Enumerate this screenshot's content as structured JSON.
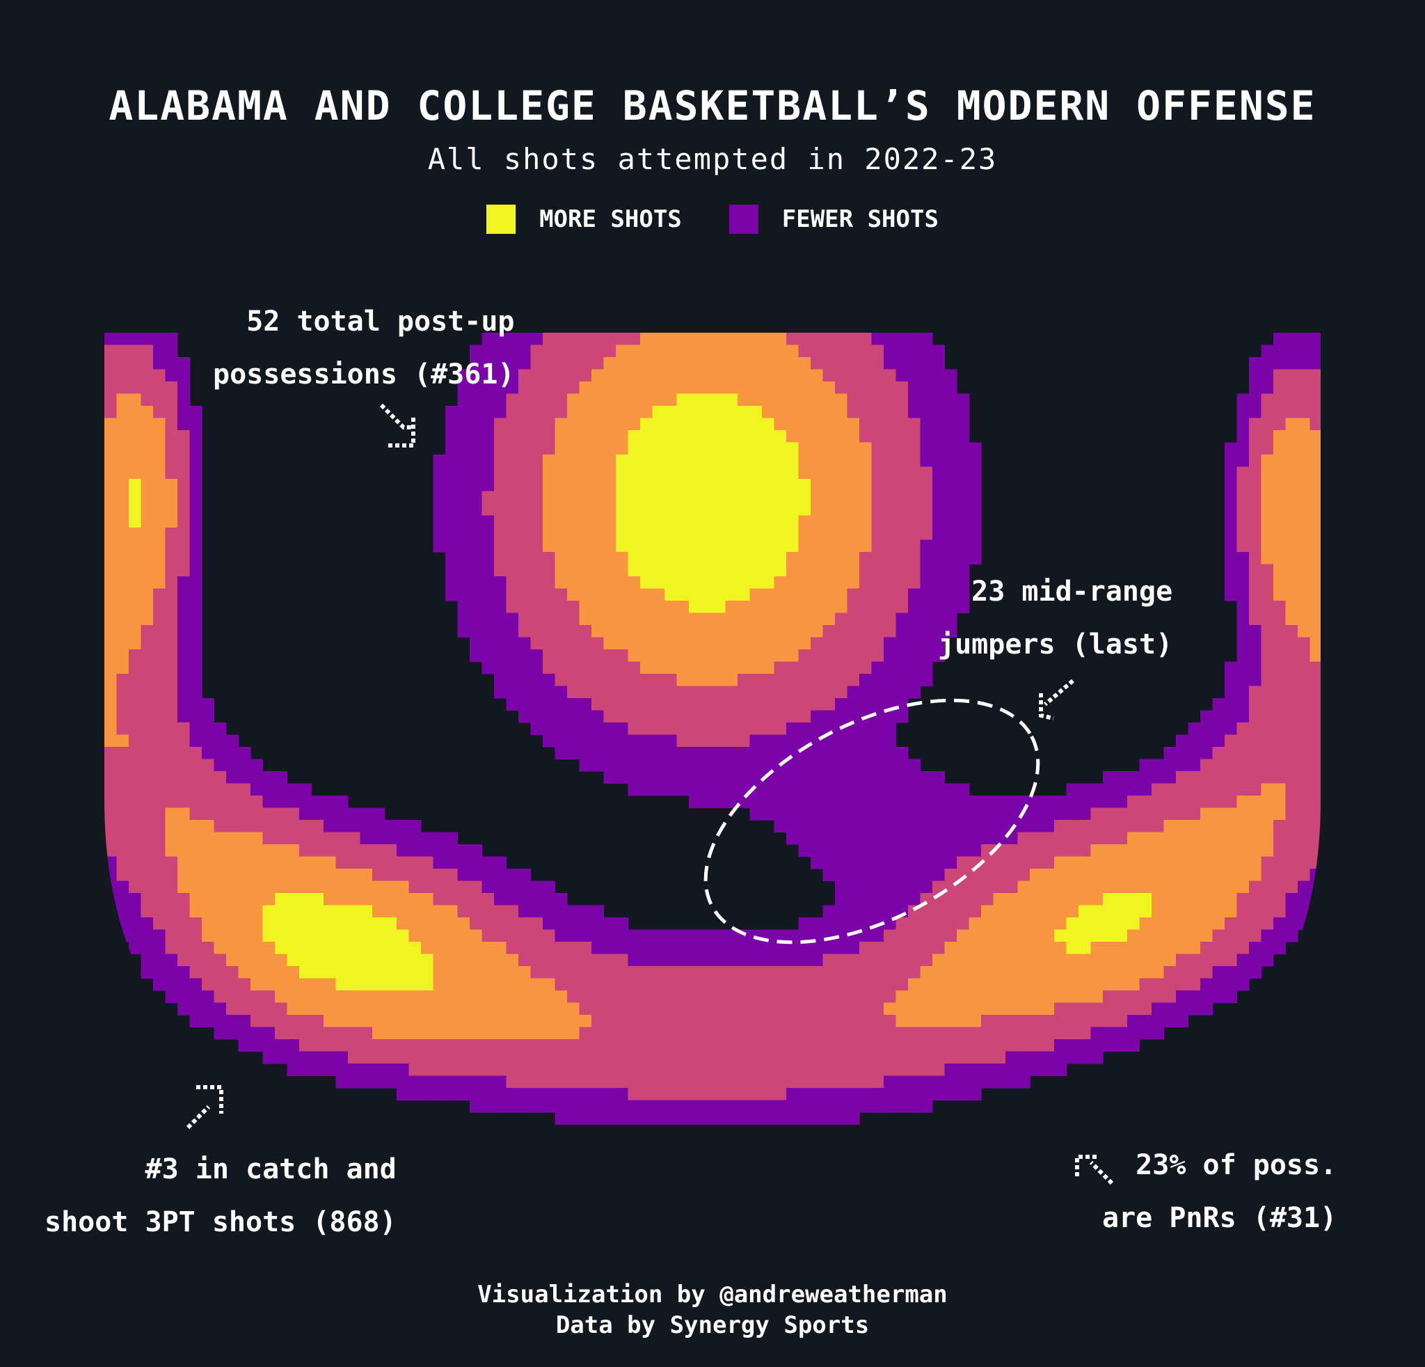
{
  "chart_data": {
    "type": "heatmap",
    "title": "ALABAMA AND COLLEGE BASKETBALL’S MODERN OFFENSE",
    "subtitle": "All shots attempted in 2022-23",
    "legend": [
      {
        "label": "MORE SHOTS",
        "color": "#f0f521"
      },
      {
        "label": "FEWER SHOTS",
        "color": "#7a04a8"
      }
    ],
    "levels": [
      {
        "rank": 1,
        "color": "#7a04a8"
      },
      {
        "rank": 2,
        "color": "#cc4778"
      },
      {
        "rank": 3,
        "color": "#f89540"
      },
      {
        "rank": 4,
        "color": "#f0f521"
      }
    ],
    "annotations": [
      {
        "line1": "52 total post-up",
        "line2": "possessions (#361)"
      },
      {
        "line1": "23 mid-range",
        "line2": "jumpers (last)"
      },
      {
        "line1": "#3 in catch and",
        "line2": "shoot 3PT shots (868)"
      },
      {
        "line1": "23% of poss.",
        "line2": "are PnRs (#31)"
      }
    ],
    "grid": false
  },
  "footer": {
    "line1": "Visualization by @andreweatherman",
    "line2": "Data by Synergy Sports"
  },
  "background": "#111820"
}
